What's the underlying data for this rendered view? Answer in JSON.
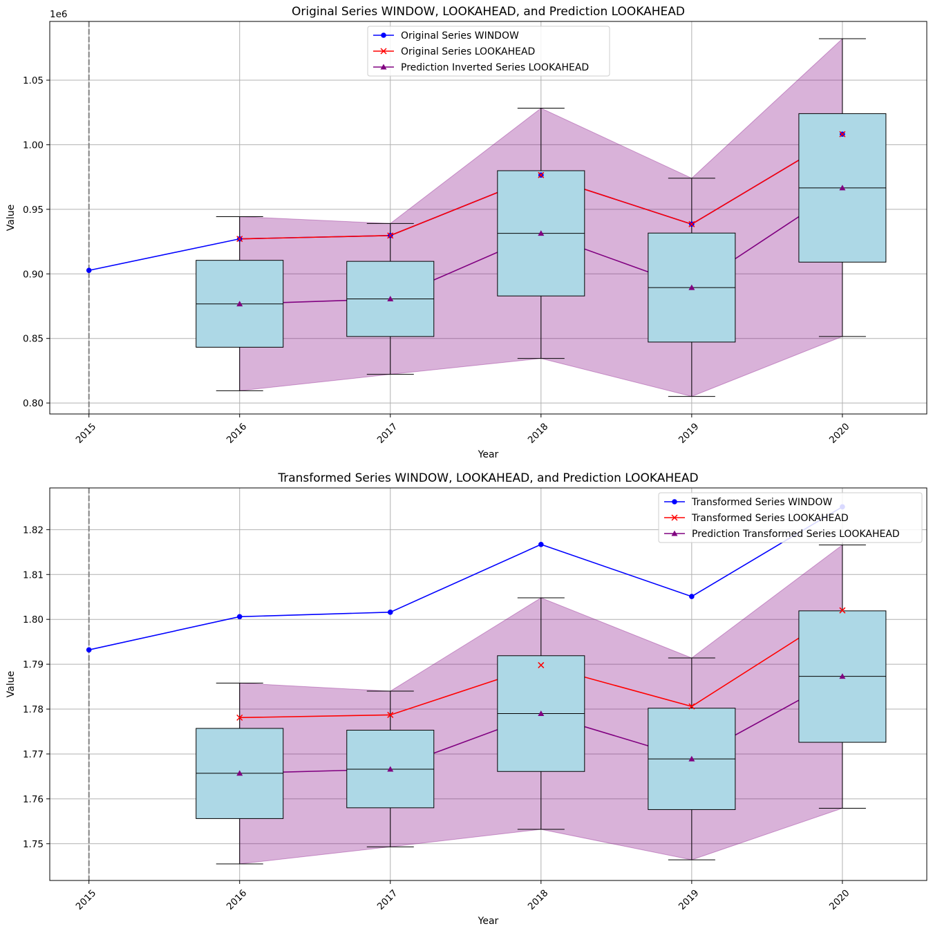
{
  "colors": {
    "window": "#0000ff",
    "lookahead": "#ff0000",
    "prediction": "#800080",
    "band": "#d8b1d8",
    "box": "#add8e6",
    "grid": "#b0b0b0",
    "vline": "#808080"
  },
  "chart_data": [
    {
      "type": "line",
      "title": "Original Series WINDOW, LOOKAHEAD, and Prediction LOOKAHEAD",
      "xlabel": "Year",
      "ylabel": "Value",
      "y_exponent_label": "1e6",
      "scale": 1000000,
      "categories": [
        "2015",
        "2016",
        "2017",
        "2018",
        "2019",
        "2020"
      ],
      "x_tick_labels": [
        "2015",
        "2016",
        "2017",
        "2018",
        "2019",
        "2020"
      ],
      "xlim": [
        2014.74,
        2020.56
      ],
      "ylim": [
        0.7915,
        1.0955
      ],
      "y_ticks": [
        0.8,
        0.85,
        0.9,
        0.95,
        1.0,
        1.05
      ],
      "y_tick_labels": [
        "0.80",
        "0.85",
        "0.90",
        "0.95",
        "1.00",
        "1.05"
      ],
      "vertical_line_x": 2015,
      "legend_position": "top-center",
      "series": [
        {
          "name": "Original Series WINDOW",
          "marker": "circle",
          "x": [
            2015,
            2016,
            2017,
            2018,
            2019,
            2020
          ],
          "values": [
            0.9027,
            0.9271,
            0.9297,
            0.9765,
            0.9385,
            1.0082
          ]
        },
        {
          "name": "Original Series LOOKAHEAD",
          "marker": "x",
          "x": [
            2016,
            2017,
            2018,
            2019,
            2020
          ],
          "values": [
            0.9271,
            0.9297,
            0.9765,
            0.9385,
            1.0082
          ]
        },
        {
          "name": "Prediction Inverted Series LOOKAHEAD",
          "marker": "triangle",
          "x": [
            2016,
            2017,
            2018,
            2019,
            2020
          ],
          "values": [
            0.8767,
            0.8806,
            0.9314,
            0.8894,
            0.9666
          ]
        }
      ],
      "band": {
        "x": [
          2016,
          2017,
          2018,
          2019,
          2020
        ],
        "lower": [
          0.8095,
          0.8222,
          0.8345,
          0.8051,
          0.8515
        ],
        "upper": [
          0.9443,
          0.939,
          1.0283,
          0.9741,
          1.0821
        ]
      },
      "boxes": [
        {
          "x": 2016,
          "whisker_low": 0.8095,
          "q1": 0.8432,
          "median": 0.8767,
          "q3": 0.9105,
          "whisker_high": 0.9443
        },
        {
          "x": 2017,
          "whisker_low": 0.8222,
          "q1": 0.8515,
          "median": 0.8806,
          "q3": 0.9097,
          "whisker_high": 0.939
        },
        {
          "x": 2018,
          "whisker_low": 0.8345,
          "q1": 0.8829,
          "median": 0.9314,
          "q3": 0.9799,
          "whisker_high": 1.0283
        },
        {
          "x": 2019,
          "whisker_low": 0.8051,
          "q1": 0.8472,
          "median": 0.8894,
          "q3": 0.9316,
          "whisker_high": 0.9741
        },
        {
          "x": 2020,
          "whisker_low": 0.8515,
          "q1": 0.9091,
          "median": 0.9666,
          "q3": 1.0241,
          "whisker_high": 1.0821
        }
      ]
    },
    {
      "type": "line",
      "title": "Transformed Series WINDOW, LOOKAHEAD, and Prediction LOOKAHEAD",
      "xlabel": "Year",
      "ylabel": "Value",
      "y_exponent_label": "",
      "scale": 1,
      "categories": [
        "2015",
        "2016",
        "2017",
        "2018",
        "2019",
        "2020"
      ],
      "x_tick_labels": [
        "2015",
        "2016",
        "2017",
        "2018",
        "2019",
        "2020"
      ],
      "xlim": [
        2014.74,
        2020.56
      ],
      "ylim": [
        1.7418,
        1.8293
      ],
      "y_ticks": [
        1.75,
        1.76,
        1.77,
        1.78,
        1.79,
        1.8,
        1.81,
        1.82
      ],
      "y_tick_labels": [
        "1.75",
        "1.76",
        "1.77",
        "1.78",
        "1.79",
        "1.80",
        "1.81",
        "1.82"
      ],
      "vertical_line_x": 2015,
      "legend_position": "top-right",
      "series": [
        {
          "name": "Transformed Series WINDOW",
          "marker": "circle",
          "x": [
            2015,
            2016,
            2017,
            2018,
            2019,
            2020
          ],
          "values": [
            1.7932,
            1.8006,
            1.8016,
            1.8167,
            1.8051,
            1.8251
          ]
        },
        {
          "name": "Transformed Series LOOKAHEAD",
          "marker": "x",
          "x": [
            2016,
            2017,
            2018,
            2019,
            2020
          ],
          "values": [
            1.7781,
            1.7787,
            1.7898,
            1.7806,
            1.802
          ]
        },
        {
          "name": "Prediction Transformed Series LOOKAHEAD",
          "marker": "triangle",
          "x": [
            2016,
            2017,
            2018,
            2019,
            2020
          ],
          "values": [
            1.7657,
            1.7666,
            1.779,
            1.7689,
            1.7873
          ]
        }
      ],
      "band": {
        "x": [
          2016,
          2017,
          2018,
          2019,
          2020
        ],
        "lower": [
          1.7455,
          1.7493,
          1.7532,
          1.7464,
          1.7579
        ],
        "upper": [
          1.7858,
          1.784,
          1.8048,
          1.7914,
          1.8166
        ]
      },
      "boxes": [
        {
          "x": 2016,
          "whisker_low": 1.7455,
          "q1": 1.7556,
          "median": 1.7657,
          "q3": 1.7757,
          "whisker_high": 1.7858
        },
        {
          "x": 2017,
          "whisker_low": 1.7493,
          "q1": 1.758,
          "median": 1.7666,
          "q3": 1.7753,
          "whisker_high": 1.784
        },
        {
          "x": 2018,
          "whisker_low": 1.7532,
          "q1": 1.7661,
          "median": 1.779,
          "q3": 1.7919,
          "whisker_high": 1.8048
        },
        {
          "x": 2019,
          "whisker_low": 1.7464,
          "q1": 1.7576,
          "median": 1.7689,
          "q3": 1.7802,
          "whisker_high": 1.7914
        },
        {
          "x": 2020,
          "whisker_low": 1.7579,
          "q1": 1.7726,
          "median": 1.7873,
          "q3": 1.8019,
          "whisker_high": 1.8166
        }
      ]
    }
  ]
}
